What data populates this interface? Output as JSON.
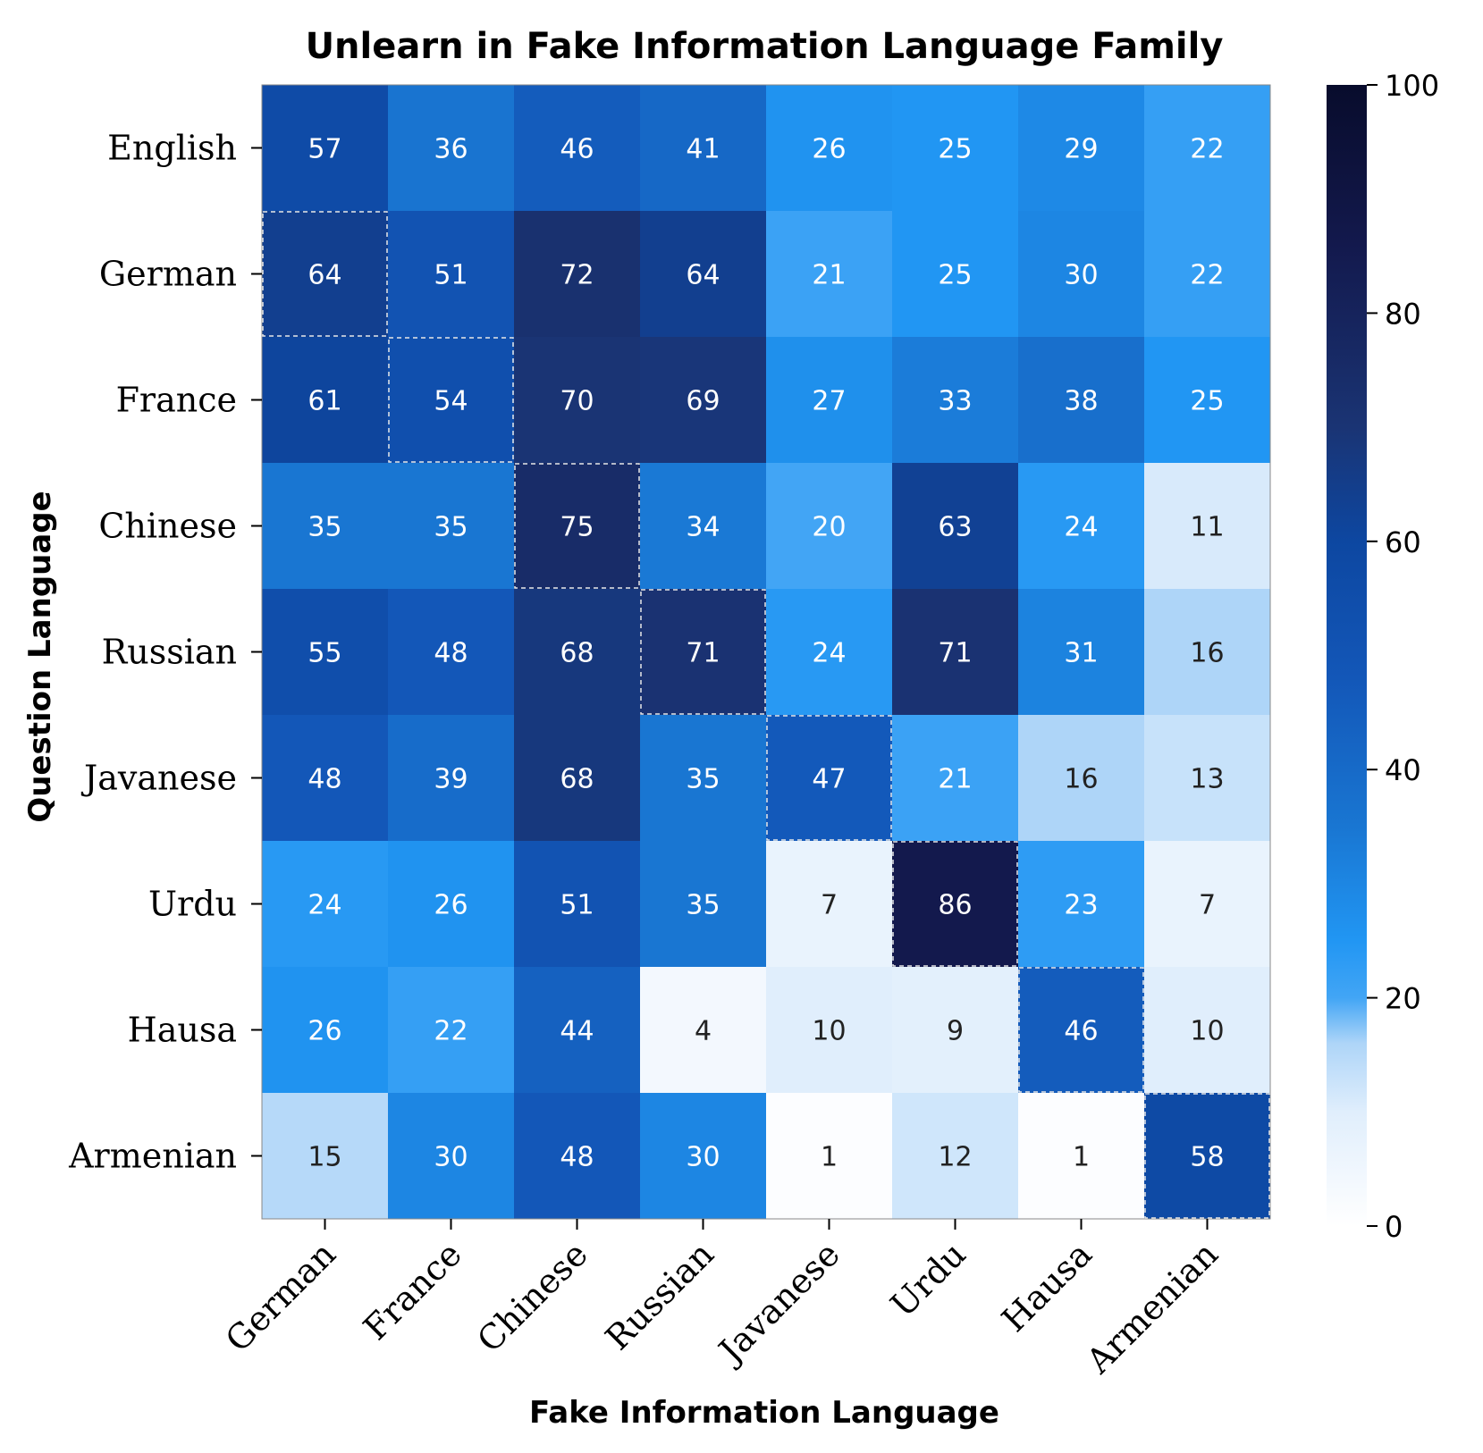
{
  "chart_data": {
    "type": "heatmap",
    "title": "Unlearn in Fake Information Language Family",
    "xlabel": "Fake Information Language",
    "ylabel": "Question Language",
    "x_categories": [
      "German",
      "France",
      "Chinese",
      "Russian",
      "Javanese",
      "Urdu",
      "Hausa",
      "Armenian"
    ],
    "y_categories": [
      "English",
      "German",
      "France",
      "Chinese",
      "Russian",
      "Javanese",
      "Urdu",
      "Hausa",
      "Armenian"
    ],
    "values": [
      [
        57,
        36,
        46,
        41,
        26,
        25,
        29,
        22
      ],
      [
        64,
        51,
        72,
        64,
        21,
        25,
        30,
        22
      ],
      [
        61,
        54,
        70,
        69,
        27,
        33,
        38,
        25
      ],
      [
        35,
        35,
        75,
        34,
        20,
        63,
        24,
        11
      ],
      [
        55,
        48,
        68,
        71,
        24,
        71,
        31,
        16
      ],
      [
        48,
        39,
        68,
        35,
        47,
        21,
        16,
        13
      ],
      [
        24,
        26,
        51,
        35,
        7,
        86,
        23,
        7
      ],
      [
        26,
        22,
        44,
        4,
        10,
        9,
        46,
        10
      ],
      [
        15,
        30,
        48,
        30,
        1,
        12,
        1,
        58
      ]
    ],
    "highlighted_cells": [
      [
        1,
        0
      ],
      [
        2,
        1
      ],
      [
        3,
        2
      ],
      [
        4,
        3
      ],
      [
        5,
        4
      ],
      [
        6,
        5
      ],
      [
        7,
        6
      ],
      [
        8,
        7
      ]
    ],
    "colorbar": {
      "range": [
        0,
        100
      ],
      "ticks": [
        "0",
        "20",
        "40",
        "60",
        "80",
        "100"
      ],
      "tick_values": [
        0,
        20,
        40,
        60,
        80,
        100
      ]
    },
    "colormap": {
      "stops": [
        {
          "v": 0,
          "c": "#ffffff"
        },
        {
          "v": 10,
          "c": "#e0eefc"
        },
        {
          "v": 16,
          "c": "#aed5f8"
        },
        {
          "v": 20,
          "c": "#42a5f5"
        },
        {
          "v": 25,
          "c": "#2196f3"
        },
        {
          "v": 35,
          "c": "#1976d2"
        },
        {
          "v": 48,
          "c": "#1357b8"
        },
        {
          "v": 60,
          "c": "#0d47a1"
        },
        {
          "v": 70,
          "c": "#1a3474"
        },
        {
          "v": 86,
          "c": "#13194d"
        },
        {
          "v": 100,
          "c": "#080c2c"
        }
      ]
    },
    "label_colors": {
      "light": "#ffffff",
      "dark": "#222222"
    },
    "highlight_color": "#e8e8e8"
  }
}
